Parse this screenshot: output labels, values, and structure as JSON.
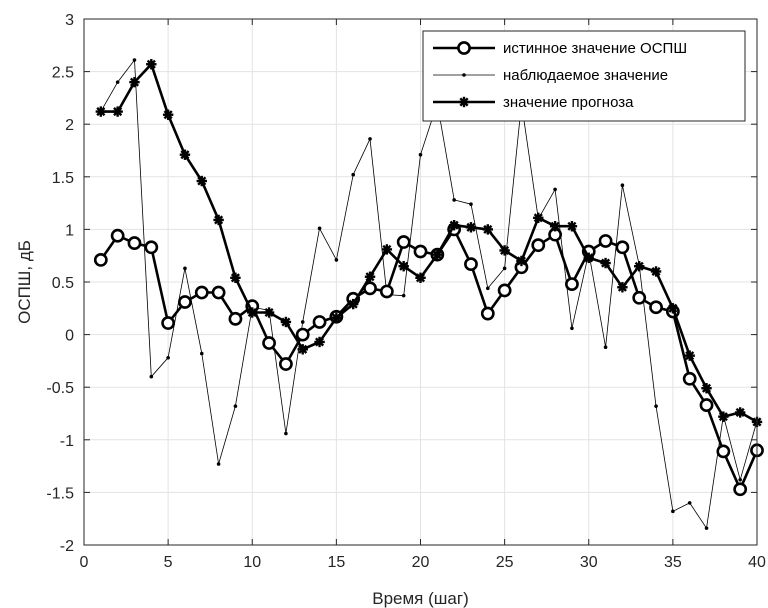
{
  "chart_data": {
    "type": "line",
    "xlabel": "Время (шаг)",
    "ylabel": "ОСПШ, дБ",
    "xlim": [
      0,
      40
    ],
    "ylim": [
      -2,
      3
    ],
    "xticks": [
      0,
      5,
      10,
      15,
      20,
      25,
      30,
      35,
      40
    ],
    "yticks": [
      -2,
      -1.5,
      -1,
      -0.5,
      0,
      0.5,
      1,
      1.5,
      2,
      2.5,
      3
    ],
    "xtick_labels": [
      "0",
      "5",
      "10",
      "15",
      "20",
      "25",
      "30",
      "35",
      "40"
    ],
    "ytick_labels": [
      "-2",
      "-1.5",
      "-1",
      "-0.5",
      "0",
      "0.5",
      "1",
      "1.5",
      "2",
      "2.5",
      "3"
    ],
    "grid": true,
    "legend_position": "top-right",
    "x": [
      1,
      2,
      3,
      4,
      5,
      6,
      7,
      8,
      9,
      10,
      11,
      12,
      13,
      14,
      15,
      16,
      17,
      18,
      19,
      20,
      21,
      22,
      23,
      24,
      25,
      26,
      27,
      28,
      29,
      30,
      31,
      32,
      33,
      34,
      35,
      36,
      37,
      38,
      39,
      40
    ],
    "series": [
      {
        "name": "истинное значение ОСПШ",
        "marker": "circle",
        "color": "#000000",
        "values": [
          0.71,
          0.94,
          0.87,
          0.83,
          0.11,
          0.31,
          0.4,
          0.4,
          0.15,
          0.27,
          -0.08,
          -0.28,
          0.0,
          0.12,
          0.17,
          0.34,
          0.44,
          0.41,
          0.88,
          0.79,
          0.76,
          1.0,
          0.67,
          0.2,
          0.42,
          0.64,
          0.85,
          0.95,
          0.48,
          0.79,
          0.89,
          0.83,
          0.35,
          0.26,
          0.22,
          -0.42,
          -0.67,
          -1.11,
          -1.47,
          -1.1
        ]
      },
      {
        "name": "наблюдаемое значение",
        "marker": "dot",
        "color": "#000000",
        "values": [
          2.12,
          2.4,
          2.61,
          -0.4,
          -0.22,
          0.63,
          -0.18,
          -1.23,
          -0.68,
          0.26,
          0.23,
          -0.94,
          0.12,
          1.01,
          0.71,
          1.52,
          1.86,
          0.38,
          0.37,
          1.71,
          2.2,
          1.28,
          1.24,
          0.44,
          0.63,
          2.2,
          1.1,
          1.38,
          0.06,
          0.78,
          -0.12,
          1.42,
          0.66,
          -0.68,
          -1.68,
          -1.6,
          -1.84,
          -0.77,
          -1.38,
          -0.82
        ]
      },
      {
        "name": "значение прогноза",
        "marker": "star",
        "color": "#000000",
        "values": [
          2.12,
          2.12,
          2.4,
          2.57,
          2.09,
          1.71,
          1.46,
          1.09,
          0.54,
          0.21,
          0.21,
          0.12,
          -0.14,
          -0.07,
          0.16,
          0.29,
          0.55,
          0.81,
          0.65,
          0.54,
          0.76,
          1.04,
          1.02,
          1.0,
          0.8,
          0.7,
          1.11,
          1.03,
          1.03,
          0.73,
          0.68,
          0.45,
          0.65,
          0.6,
          0.25,
          -0.2,
          -0.51,
          -0.78,
          -0.74,
          -0.83
        ]
      }
    ]
  }
}
